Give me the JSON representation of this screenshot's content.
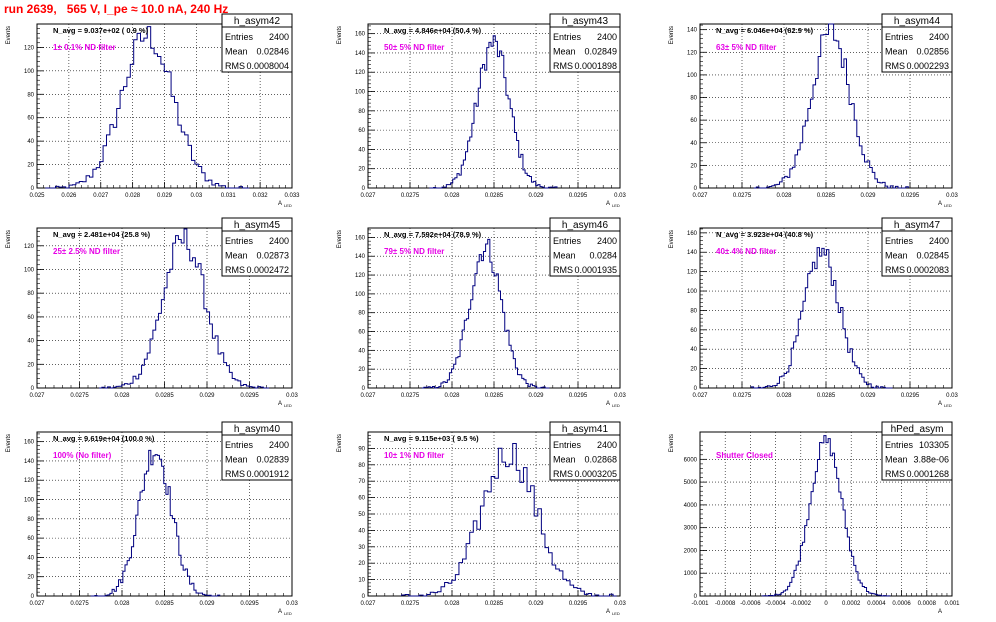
{
  "title": "run 2639,   565 V, I_pe ≈ 10.0 nA, 240 Hz",
  "colors": {
    "title": "#ff0000",
    "filter_label": "#e600e6",
    "histogram": "#000080",
    "grid": "#000000"
  },
  "stats_labels": {
    "entries": "Entries",
    "mean": "Mean",
    "rms": "RMS"
  },
  "ylabel": "Events",
  "xlabel": "A",
  "xlabel_sub": "LED",
  "chart_data": [
    {
      "type": "histogram",
      "name": "h_asym42",
      "navg": "N_avg = 9.037e+02 ( 0.9 %)",
      "filter": "1± 0.1% ND filter",
      "stats": {
        "entries": "2400",
        "mean": "0.02846",
        "rms": "0.0008004"
      },
      "xlim": [
        0.025,
        0.033
      ],
      "ylim": [
        0,
        140
      ],
      "yticks": [
        0,
        20,
        40,
        60,
        80,
        100,
        120
      ],
      "xticks": [
        "0.025",
        "0.026",
        "0.027",
        "0.028",
        "0.029",
        "0.03",
        "0.031",
        "0.032",
        "0.033"
      ],
      "mean": 0.02846,
      "sigma": 0.0008,
      "peak": 130,
      "xlabel_sub": "LED"
    },
    {
      "type": "histogram",
      "name": "h_asym43",
      "navg": "N_avg = 4.846e+04 (50.4 %)",
      "filter": "50± 5% ND filter",
      "stats": {
        "entries": "2400",
        "mean": "0.02849",
        "rms": "0.0001898"
      },
      "xlim": [
        0.027,
        0.03
      ],
      "ylim": [
        0,
        170
      ],
      "yticks": [
        0,
        20,
        40,
        60,
        80,
        100,
        120,
        140,
        160
      ],
      "xticks": [
        "0.027",
        "0.0275",
        "0.028",
        "0.0285",
        "0.029",
        "0.0295",
        "0.03"
      ],
      "mean": 0.02849,
      "sigma": 0.00019,
      "peak": 150,
      "xlabel_sub": "LED"
    },
    {
      "type": "histogram",
      "name": "h_asym44",
      "navg": "N_avg = 6.046e+04 (62.9 %)",
      "filter": "63± 5% ND filter",
      "stats": {
        "entries": "2400",
        "mean": "0.02856",
        "rms": "0.0002293"
      },
      "xlim": [
        0.027,
        0.03
      ],
      "ylim": [
        0,
        145
      ],
      "yticks": [
        0,
        20,
        40,
        60,
        80,
        100,
        120,
        140
      ],
      "xticks": [
        "0.027",
        "0.0275",
        "0.028",
        "0.0285",
        "0.029",
        "0.0295",
        "0.03"
      ],
      "mean": 0.02856,
      "sigma": 0.00023,
      "peak": 138,
      "xlabel_sub": "LED"
    },
    {
      "type": "histogram",
      "name": "h_asym45",
      "navg": "N_avg = 2.481e+04 (25.8 %)",
      "filter": "25± 2.5% ND filter",
      "stats": {
        "entries": "2400",
        "mean": "0.02873",
        "rms": "0.0002472"
      },
      "xlim": [
        0.027,
        0.03
      ],
      "ylim": [
        0,
        135
      ],
      "yticks": [
        0,
        20,
        40,
        60,
        80,
        100,
        120
      ],
      "xticks": [
        "0.027",
        "0.0275",
        "0.028",
        "0.0285",
        "0.029",
        "0.0295",
        "0.03"
      ],
      "mean": 0.02873,
      "sigma": 0.00025,
      "peak": 125,
      "xlabel_sub": "LED"
    },
    {
      "type": "histogram",
      "name": "h_asym46",
      "navg": "N_avg = 7.592e+04 (78.9 %)",
      "filter": "79± 5% ND filter",
      "stats": {
        "entries": "2400",
        "mean": "0.0284",
        "rms": "0.0001935"
      },
      "xlim": [
        0.027,
        0.03
      ],
      "ylim": [
        0,
        170
      ],
      "yticks": [
        0,
        20,
        40,
        60,
        80,
        100,
        120,
        140,
        160
      ],
      "xticks": [
        "0.027",
        "0.0275",
        "0.028",
        "0.0285",
        "0.029",
        "0.0295",
        "0.03"
      ],
      "mean": 0.0284,
      "sigma": 0.00019,
      "peak": 150,
      "xlabel_sub": "LED"
    },
    {
      "type": "histogram",
      "name": "h_asym47",
      "navg": "N_avg = 3.923e+04 (40.8 %)",
      "filter": "40± 4% ND filter",
      "stats": {
        "entries": "2400",
        "mean": "0.02845",
        "rms": "0.0002083"
      },
      "xlim": [
        0.027,
        0.03
      ],
      "ylim": [
        0,
        165
      ],
      "yticks": [
        0,
        20,
        40,
        60,
        80,
        100,
        120,
        140,
        160
      ],
      "xticks": [
        "0.027",
        "0.0275",
        "0.028",
        "0.0285",
        "0.029",
        "0.0295",
        "0.03"
      ],
      "mean": 0.02845,
      "sigma": 0.00021,
      "peak": 140,
      "xlabel_sub": "LED"
    },
    {
      "type": "histogram",
      "name": "h_asym40",
      "navg": "N_avg = 9.619e+04 (100.0 %)",
      "filter": "100% (No filter)",
      "stats": {
        "entries": "2400",
        "mean": "0.02839",
        "rms": "0.0001912"
      },
      "xlim": [
        0.027,
        0.03
      ],
      "ylim": [
        0,
        170
      ],
      "yticks": [
        0,
        20,
        40,
        60,
        80,
        100,
        120,
        140,
        160
      ],
      "xticks": [
        "0.027",
        "0.0275",
        "0.028",
        "0.0285",
        "0.029",
        "0.0295",
        "0.03"
      ],
      "mean": 0.02839,
      "sigma": 0.00019,
      "peak": 152,
      "xlabel_sub": "LED"
    },
    {
      "type": "histogram",
      "name": "h_asym41",
      "navg": "N_avg = 9.115e+03 ( 9.5 %)",
      "filter": "10± 1% ND filter",
      "stats": {
        "entries": "2400",
        "mean": "0.02868",
        "rms": "0.0003205"
      },
      "xlim": [
        0.027,
        0.03
      ],
      "ylim": [
        0,
        100
      ],
      "yticks": [
        0,
        10,
        20,
        30,
        40,
        50,
        60,
        70,
        80,
        90
      ],
      "xticks": [
        "0.027",
        "0.0275",
        "0.028",
        "0.0285",
        "0.029",
        "0.0295",
        "0.03"
      ],
      "mean": 0.02868,
      "sigma": 0.00032,
      "peak": 88,
      "xlabel_sub": "LED"
    },
    {
      "type": "histogram",
      "name": "hPed_asym",
      "navg": "",
      "filter": "Shutter Closed",
      "stats": {
        "entries": "103305",
        "mean": "3.88e-06",
        "rms": "0.0001268"
      },
      "xlim": [
        -0.001,
        0.001
      ],
      "ylim": [
        0,
        7200
      ],
      "yticks": [
        0,
        1000,
        2000,
        3000,
        4000,
        5000,
        6000
      ],
      "xticks": [
        "-0.001",
        "-0.0008",
        "-0.0006",
        "-0.0004",
        "-0.0002",
        "0",
        "0.0002",
        "0.0004",
        "0.0006",
        "0.0008",
        "0.001"
      ],
      "mean": 0.0,
      "sigma": 0.000127,
      "peak": 6800,
      "xlabel_sub": ""
    }
  ]
}
